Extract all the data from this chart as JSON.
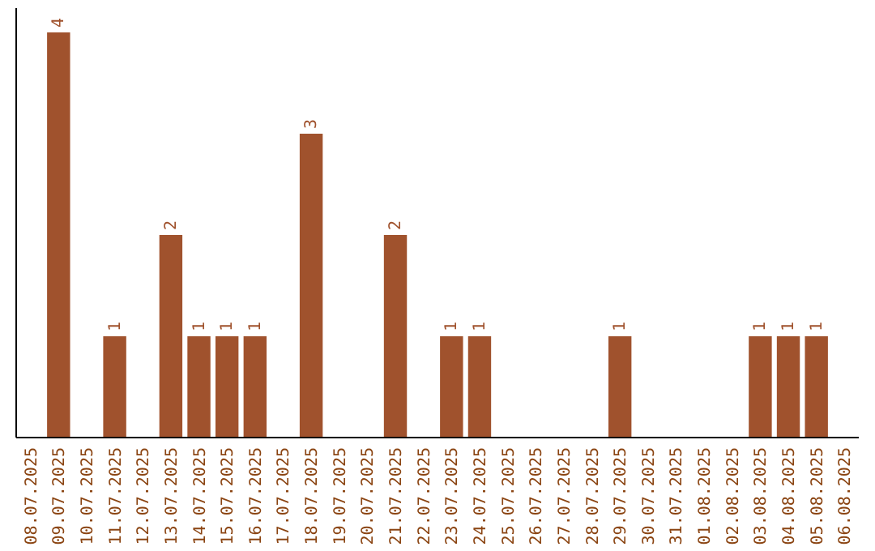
{
  "chart_data": {
    "type": "bar",
    "categories": [
      "08.07.2025",
      "09.07.2025",
      "10.07.2025",
      "11.07.2025",
      "12.07.2025",
      "13.07.2025",
      "14.07.2025",
      "15.07.2025",
      "16.07.2025",
      "17.07.2025",
      "18.07.2025",
      "19.07.2025",
      "20.07.2025",
      "21.07.2025",
      "22.07.2025",
      "23.07.2025",
      "24.07.2025",
      "25.07.2025",
      "26.07.2025",
      "27.07.2025",
      "28.07.2025",
      "29.07.2025",
      "30.07.2025",
      "31.07.2025",
      "01.08.2025",
      "02.08.2025",
      "03.08.2025",
      "04.08.2025",
      "05.08.2025",
      "06.08.2025"
    ],
    "values": [
      0,
      4,
      0,
      1,
      0,
      2,
      1,
      1,
      1,
      0,
      3,
      0,
      0,
      2,
      0,
      1,
      1,
      0,
      0,
      0,
      0,
      1,
      0,
      0,
      0,
      0,
      1,
      1,
      1,
      0
    ],
    "value_labels": [
      null,
      "4",
      null,
      "1",
      null,
      "2",
      "1",
      "1",
      "1",
      null,
      "3",
      null,
      null,
      "2",
      null,
      "1",
      "1",
      null,
      null,
      null,
      null,
      "1",
      null,
      null,
      null,
      null,
      "1",
      "1",
      "1",
      null
    ],
    "color": "#a0522d",
    "ylim": [
      0,
      4
    ],
    "tick_labels": "x"
  }
}
